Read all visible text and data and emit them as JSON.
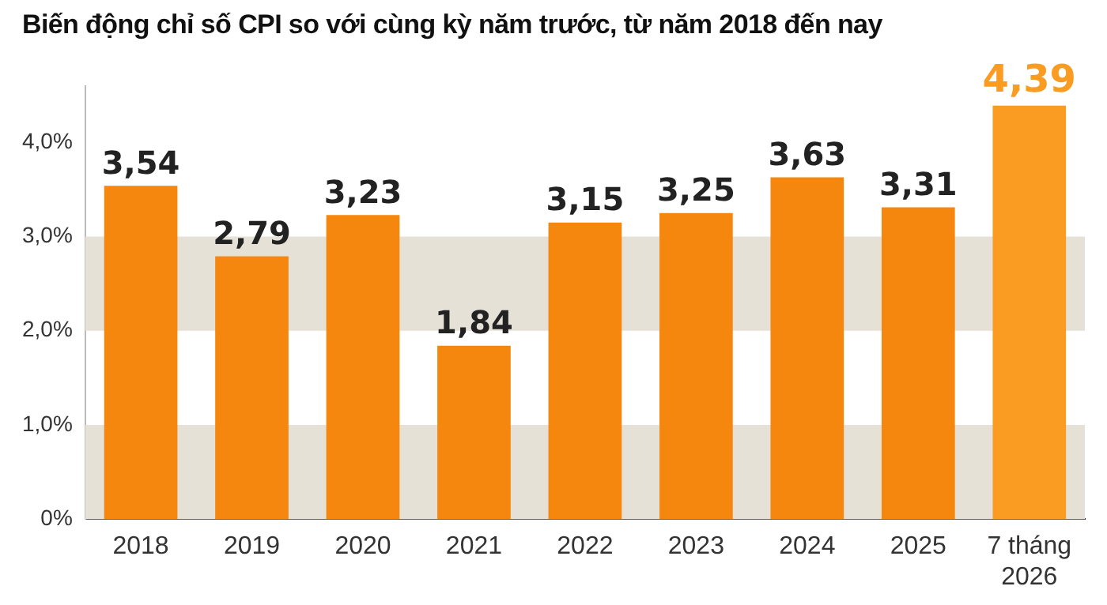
{
  "chart_data": {
    "type": "bar",
    "title": "Biến động chỉ số CPI so với cùng kỳ năm trước, từ năm 2018 đến nay",
    "categories": [
      "2018",
      "2019",
      "2020",
      "2021",
      "2022",
      "2023",
      "2024",
      "2025",
      "7 tháng 2026"
    ],
    "values": [
      3.54,
      2.79,
      3.23,
      1.84,
      3.15,
      3.25,
      3.63,
      3.31,
      4.39
    ],
    "colors": [
      "#f5870f",
      "#f5870f",
      "#f5870f",
      "#f5870f",
      "#f5870f",
      "#f5870f",
      "#f5870f",
      "#f5870f",
      "#fb9c22"
    ],
    "value_labels": [
      "3,54",
      "2,79",
      "3,23",
      "1,84",
      "3,15",
      "3,25",
      "3,63",
      "3,31",
      "4,39"
    ],
    "ylim": [
      0,
      4.6
    ],
    "yticks": [
      {
        "value": 0,
        "label": "0%"
      },
      {
        "value": 1,
        "label": "1,0%"
      },
      {
        "value": 2,
        "label": "2,0%"
      },
      {
        "value": 3,
        "label": "3,0%"
      },
      {
        "value": 4,
        "label": "4,0%"
      }
    ],
    "bands": [
      {
        "axis": "y",
        "from": 0,
        "to": 1,
        "label": null,
        "color": "#e6e1d6"
      },
      {
        "axis": "y",
        "from": 2,
        "to": 3,
        "label": null,
        "color": "#e6e1d6"
      }
    ],
    "grid": false,
    "legend": false
  }
}
